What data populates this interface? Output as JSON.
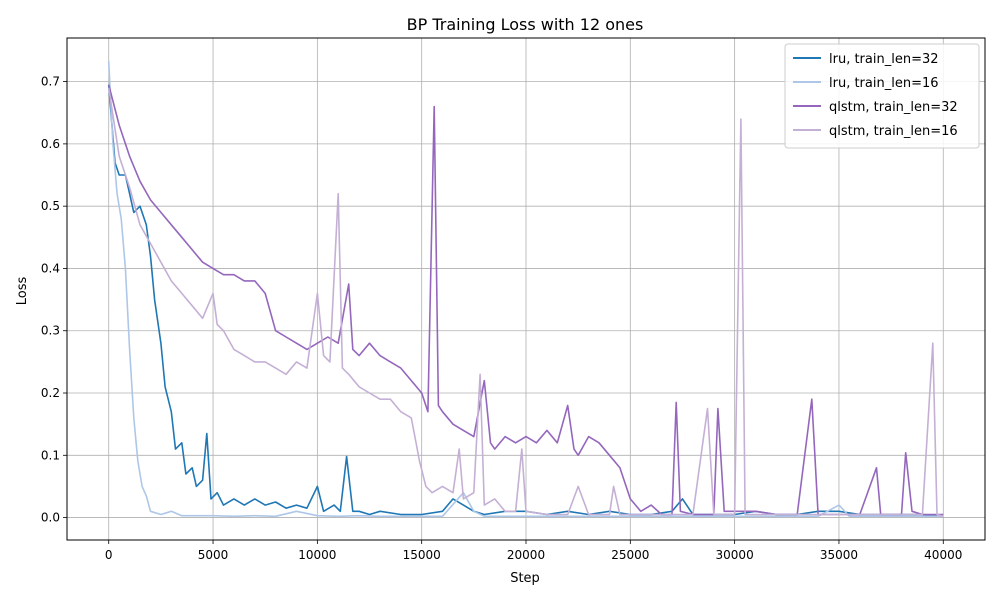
{
  "chart_data": {
    "type": "line",
    "title": "BP Training Loss with 12 ones",
    "xlabel": "Step",
    "ylabel": "Loss",
    "xlim": [
      -2000,
      42000
    ],
    "ylim": [
      -0.036,
      0.77
    ],
    "xticks": [
      0,
      5000,
      10000,
      15000,
      20000,
      25000,
      30000,
      35000,
      40000
    ],
    "yticks": [
      0.0,
      0.1,
      0.2,
      0.3,
      0.4,
      0.5,
      0.6,
      0.7
    ],
    "grid": true,
    "legend_position": "top-right",
    "series": [
      {
        "name": "lru, train_len=32",
        "color": "#1f77b4",
        "points": [
          [
            0,
            0.695
          ],
          [
            300,
            0.57
          ],
          [
            500,
            0.55
          ],
          [
            800,
            0.55
          ],
          [
            1000,
            0.52
          ],
          [
            1200,
            0.49
          ],
          [
            1500,
            0.5
          ],
          [
            1800,
            0.47
          ],
          [
            2000,
            0.42
          ],
          [
            2200,
            0.35
          ],
          [
            2500,
            0.28
          ],
          [
            2700,
            0.21
          ],
          [
            3000,
            0.17
          ],
          [
            3200,
            0.11
          ],
          [
            3500,
            0.12
          ],
          [
            3700,
            0.07
          ],
          [
            4000,
            0.08
          ],
          [
            4200,
            0.05
          ],
          [
            4500,
            0.06
          ],
          [
            4700,
            0.135
          ],
          [
            4900,
            0.03
          ],
          [
            5200,
            0.04
          ],
          [
            5500,
            0.02
          ],
          [
            6000,
            0.03
          ],
          [
            6500,
            0.02
          ],
          [
            7000,
            0.03
          ],
          [
            7500,
            0.02
          ],
          [
            8000,
            0.025
          ],
          [
            8500,
            0.015
          ],
          [
            9000,
            0.02
          ],
          [
            9500,
            0.015
          ],
          [
            10000,
            0.05
          ],
          [
            10300,
            0.01
          ],
          [
            10800,
            0.02
          ],
          [
            11100,
            0.01
          ],
          [
            11400,
            0.098
          ],
          [
            11700,
            0.01
          ],
          [
            12000,
            0.01
          ],
          [
            12500,
            0.005
          ],
          [
            13000,
            0.01
          ],
          [
            14000,
            0.005
          ],
          [
            15000,
            0.005
          ],
          [
            16000,
            0.01
          ],
          [
            16500,
            0.03
          ],
          [
            17000,
            0.02
          ],
          [
            17500,
            0.01
          ],
          [
            18000,
            0.005
          ],
          [
            19000,
            0.01
          ],
          [
            20000,
            0.01
          ],
          [
            21000,
            0.005
          ],
          [
            22000,
            0.01
          ],
          [
            23000,
            0.005
          ],
          [
            24000,
            0.01
          ],
          [
            25000,
            0.005
          ],
          [
            26000,
            0.005
          ],
          [
            27000,
            0.01
          ],
          [
            27500,
            0.03
          ],
          [
            28000,
            0.005
          ],
          [
            29000,
            0.005
          ],
          [
            30000,
            0.005
          ],
          [
            31000,
            0.01
          ],
          [
            32000,
            0.005
          ],
          [
            33000,
            0.005
          ],
          [
            34000,
            0.01
          ],
          [
            35000,
            0.01
          ],
          [
            36000,
            0.005
          ],
          [
            37000,
            0.005
          ],
          [
            38000,
            0.005
          ],
          [
            39000,
            0.005
          ],
          [
            40000,
            0.002
          ]
        ]
      },
      {
        "name": "lru, train_len=16",
        "color": "#aec7e8",
        "points": [
          [
            0,
            0.733
          ],
          [
            200,
            0.6
          ],
          [
            400,
            0.52
          ],
          [
            600,
            0.48
          ],
          [
            800,
            0.4
          ],
          [
            1000,
            0.27
          ],
          [
            1200,
            0.16
          ],
          [
            1400,
            0.09
          ],
          [
            1600,
            0.05
          ],
          [
            1800,
            0.035
          ],
          [
            2000,
            0.01
          ],
          [
            2500,
            0.005
          ],
          [
            3000,
            0.01
          ],
          [
            3500,
            0.003
          ],
          [
            4000,
            0.003
          ],
          [
            5000,
            0.003
          ],
          [
            6000,
            0.002
          ],
          [
            7000,
            0.003
          ],
          [
            8000,
            0.002
          ],
          [
            9000,
            0.01
          ],
          [
            10000,
            0.003
          ],
          [
            11000,
            0.002
          ],
          [
            12000,
            0.003
          ],
          [
            13000,
            0.002
          ],
          [
            14000,
            0.002
          ],
          [
            15000,
            0.002
          ],
          [
            16000,
            0.002
          ],
          [
            17000,
            0.04
          ],
          [
            17500,
            0.01
          ],
          [
            18000,
            0.002
          ],
          [
            19000,
            0.002
          ],
          [
            20000,
            0.002
          ],
          [
            22000,
            0.002
          ],
          [
            24000,
            0.002
          ],
          [
            26000,
            0.002
          ],
          [
            28000,
            0.002
          ],
          [
            30000,
            0.002
          ],
          [
            32000,
            0.002
          ],
          [
            34000,
            0.002
          ],
          [
            35000,
            0.02
          ],
          [
            35500,
            0.002
          ],
          [
            36000,
            0.002
          ],
          [
            38000,
            0.002
          ],
          [
            40000,
            0.002
          ]
        ]
      },
      {
        "name": "qlstm, train_len=32",
        "color": "#9467bd",
        "points": [
          [
            0,
            0.695
          ],
          [
            500,
            0.63
          ],
          [
            1000,
            0.58
          ],
          [
            1500,
            0.54
          ],
          [
            2000,
            0.51
          ],
          [
            2500,
            0.49
          ],
          [
            3000,
            0.47
          ],
          [
            3500,
            0.45
          ],
          [
            4000,
            0.43
          ],
          [
            4500,
            0.41
          ],
          [
            5000,
            0.4
          ],
          [
            5500,
            0.39
          ],
          [
            6000,
            0.39
          ],
          [
            6500,
            0.38
          ],
          [
            7000,
            0.38
          ],
          [
            7500,
            0.36
          ],
          [
            8000,
            0.3
          ],
          [
            8500,
            0.29
          ],
          [
            9000,
            0.28
          ],
          [
            9500,
            0.27
          ],
          [
            10000,
            0.28
          ],
          [
            10500,
            0.29
          ],
          [
            11000,
            0.28
          ],
          [
            11500,
            0.375
          ],
          [
            11700,
            0.27
          ],
          [
            12000,
            0.26
          ],
          [
            12500,
            0.28
          ],
          [
            13000,
            0.26
          ],
          [
            13500,
            0.25
          ],
          [
            14000,
            0.24
          ],
          [
            14500,
            0.22
          ],
          [
            15000,
            0.2
          ],
          [
            15300,
            0.17
          ],
          [
            15600,
            0.66
          ],
          [
            15800,
            0.18
          ],
          [
            16000,
            0.17
          ],
          [
            16500,
            0.15
          ],
          [
            17000,
            0.14
          ],
          [
            17500,
            0.13
          ],
          [
            18000,
            0.22
          ],
          [
            18300,
            0.12
          ],
          [
            18500,
            0.11
          ],
          [
            19000,
            0.13
          ],
          [
            19500,
            0.12
          ],
          [
            20000,
            0.13
          ],
          [
            20500,
            0.12
          ],
          [
            21000,
            0.14
          ],
          [
            21500,
            0.12
          ],
          [
            22000,
            0.18
          ],
          [
            22300,
            0.11
          ],
          [
            22500,
            0.1
          ],
          [
            23000,
            0.13
          ],
          [
            23500,
            0.12
          ],
          [
            24000,
            0.1
          ],
          [
            24500,
            0.08
          ],
          [
            25000,
            0.03
          ],
          [
            25500,
            0.01
          ],
          [
            26000,
            0.02
          ],
          [
            26500,
            0.005
          ],
          [
            27000,
            0.005
          ],
          [
            27200,
            0.185
          ],
          [
            27400,
            0.01
          ],
          [
            28000,
            0.005
          ],
          [
            29000,
            0.005
          ],
          [
            29200,
            0.175
          ],
          [
            29500,
            0.01
          ],
          [
            30000,
            0.01
          ],
          [
            31000,
            0.01
          ],
          [
            32000,
            0.005
          ],
          [
            33000,
            0.005
          ],
          [
            33700,
            0.19
          ],
          [
            34000,
            0.005
          ],
          [
            35000,
            0.005
          ],
          [
            36000,
            0.005
          ],
          [
            36800,
            0.08
          ],
          [
            37000,
            0.005
          ],
          [
            38000,
            0.005
          ],
          [
            38200,
            0.104
          ],
          [
            38500,
            0.01
          ],
          [
            39000,
            0.005
          ],
          [
            40000,
            0.005
          ]
        ]
      },
      {
        "name": "qlstm, train_len=16",
        "color": "#c5b0d5",
        "points": [
          [
            0,
            0.69
          ],
          [
            500,
            0.58
          ],
          [
            1000,
            0.53
          ],
          [
            1500,
            0.47
          ],
          [
            2000,
            0.44
          ],
          [
            2500,
            0.41
          ],
          [
            3000,
            0.38
          ],
          [
            3500,
            0.36
          ],
          [
            4000,
            0.34
          ],
          [
            4500,
            0.32
          ],
          [
            5000,
            0.36
          ],
          [
            5200,
            0.31
          ],
          [
            5500,
            0.3
          ],
          [
            6000,
            0.27
          ],
          [
            6500,
            0.26
          ],
          [
            7000,
            0.25
          ],
          [
            7500,
            0.25
          ],
          [
            8000,
            0.24
          ],
          [
            8500,
            0.23
          ],
          [
            9000,
            0.25
          ],
          [
            9500,
            0.24
          ],
          [
            10000,
            0.36
          ],
          [
            10300,
            0.26
          ],
          [
            10600,
            0.25
          ],
          [
            11000,
            0.52
          ],
          [
            11200,
            0.24
          ],
          [
            11500,
            0.23
          ],
          [
            12000,
            0.21
          ],
          [
            12500,
            0.2
          ],
          [
            13000,
            0.19
          ],
          [
            13500,
            0.19
          ],
          [
            14000,
            0.17
          ],
          [
            14500,
            0.16
          ],
          [
            14900,
            0.09
          ],
          [
            15200,
            0.05
          ],
          [
            15500,
            0.04
          ],
          [
            16000,
            0.05
          ],
          [
            16500,
            0.04
          ],
          [
            16800,
            0.11
          ],
          [
            17000,
            0.03
          ],
          [
            17500,
            0.04
          ],
          [
            17800,
            0.23
          ],
          [
            18000,
            0.02
          ],
          [
            18500,
            0.03
          ],
          [
            19000,
            0.01
          ],
          [
            19500,
            0.01
          ],
          [
            19800,
            0.11
          ],
          [
            20000,
            0.01
          ],
          [
            21000,
            0.005
          ],
          [
            22000,
            0.005
          ],
          [
            22500,
            0.05
          ],
          [
            23000,
            0.005
          ],
          [
            24000,
            0.005
          ],
          [
            24200,
            0.05
          ],
          [
            24500,
            0.005
          ],
          [
            26000,
            0.005
          ],
          [
            27000,
            0.005
          ],
          [
            28000,
            0.005
          ],
          [
            28700,
            0.175
          ],
          [
            29000,
            0.005
          ],
          [
            30000,
            0.005
          ],
          [
            30300,
            0.64
          ],
          [
            30500,
            0.005
          ],
          [
            31000,
            0.005
          ],
          [
            32000,
            0.005
          ],
          [
            33000,
            0.005
          ],
          [
            34000,
            0.005
          ],
          [
            35000,
            0.005
          ],
          [
            36000,
            0.005
          ],
          [
            37000,
            0.005
          ],
          [
            38000,
            0.005
          ],
          [
            39000,
            0.005
          ],
          [
            39500,
            0.28
          ],
          [
            39700,
            0.005
          ],
          [
            40000,
            0.002
          ]
        ]
      }
    ]
  }
}
